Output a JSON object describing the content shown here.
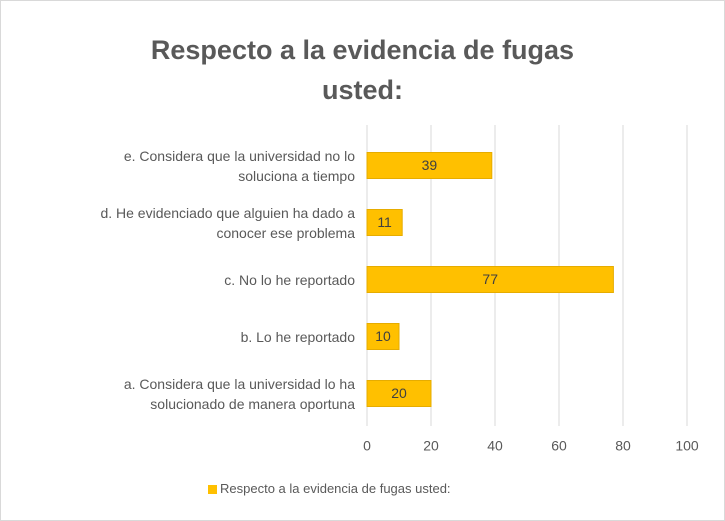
{
  "chart_data": {
    "type": "bar",
    "orientation": "horizontal",
    "title": "Respecto a la evidencia de fugas\nusted:",
    "categories": [
      "e. Considera que la universidad no lo\nsoluciona a tiempo",
      "d. He evidenciado que alguien ha dado a\nconocer ese problema",
      "c. No lo he reportado",
      "b. Lo he reportado",
      "a. Considera que la universidad lo ha\nsolucionado de manera oportuna"
    ],
    "series": [
      {
        "name": "Respecto a la evidencia de fugas usted:",
        "color": "#FFC000",
        "values": [
          39,
          11,
          77,
          10,
          20
        ]
      }
    ],
    "xlim": [
      0,
      100
    ],
    "xticks": [
      0,
      20,
      40,
      60,
      80,
      100
    ],
    "grid": true,
    "legend": "bottom"
  }
}
